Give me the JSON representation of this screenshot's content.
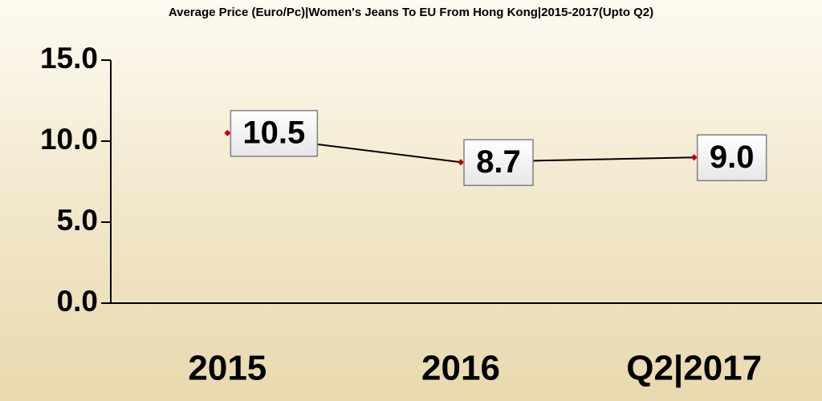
{
  "chart_data": {
    "type": "line",
    "title": "Average Price (Euro/Pc)|Women's Jeans To EU From Hong Kong|2015-2017(Upto Q2)",
    "categories": [
      "2015",
      "2016",
      "Q2|2017"
    ],
    "values": [
      10.5,
      8.7,
      9.0
    ],
    "value_labels": [
      "10.5",
      "8.7",
      "9.0"
    ],
    "color": "#000000",
    "marker_color": "#c00000",
    "ylim": [
      0,
      15
    ],
    "yticks": [
      {
        "value": 0,
        "label": "0.0"
      },
      {
        "value": 5,
        "label": "5.0"
      },
      {
        "value": 10,
        "label": "10.0"
      },
      {
        "value": 15,
        "label": "15.0"
      }
    ],
    "grid": false
  }
}
